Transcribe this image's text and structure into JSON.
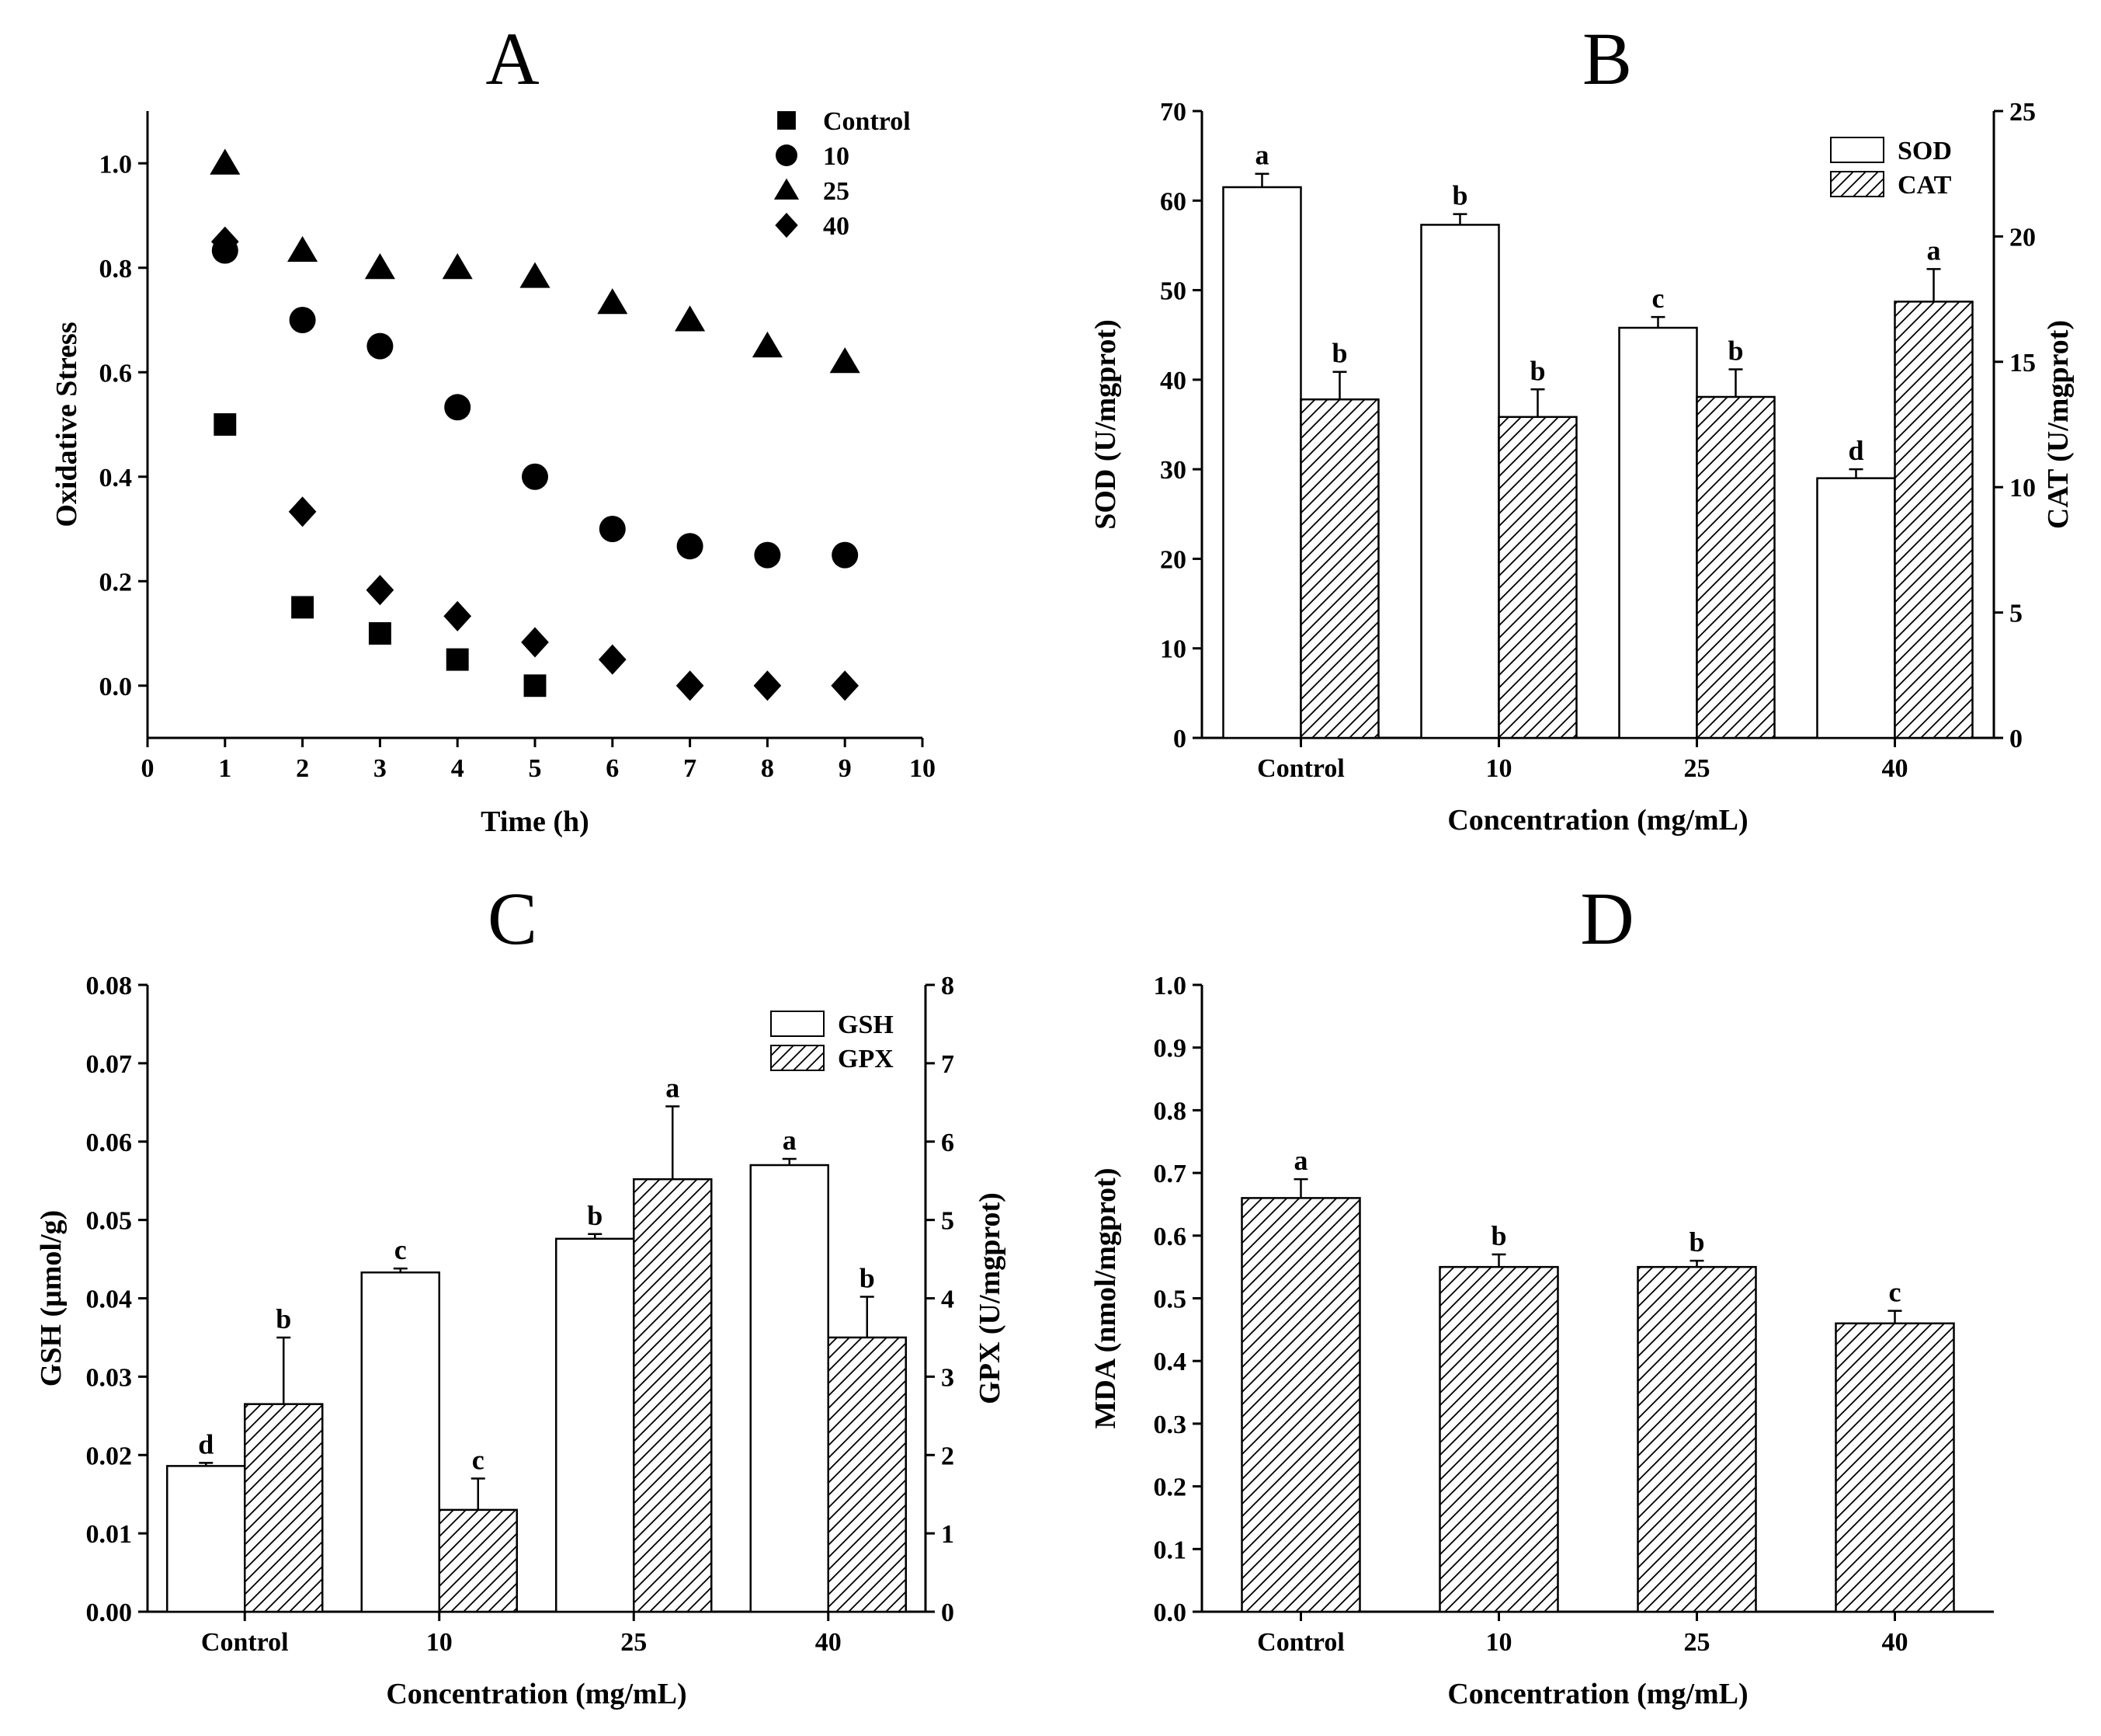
{
  "chart_data": [
    {
      "panel": "A",
      "type": "scatter",
      "title": "A",
      "xlabel": "Time (h)",
      "ylabel": "Oxidative Stress",
      "xlim": [
        0,
        10
      ],
      "ylim": [
        -0.1,
        1.1
      ],
      "xticks": [
        "0",
        "1",
        "2",
        "3",
        "4",
        "5",
        "6",
        "7",
        "8",
        "9",
        "10"
      ],
      "yticks": [
        "0.0",
        "0.2",
        "0.4",
        "0.6",
        "0.8",
        "1.0"
      ],
      "legend_position": "top-right",
      "series": [
        {
          "name": "Control",
          "marker": "square",
          "x": [
            1,
            2,
            3,
            4,
            5
          ],
          "y": [
            0.5,
            0.15,
            0.1,
            0.05,
            0.0
          ]
        },
        {
          "name": "10",
          "marker": "circle",
          "x": [
            1,
            2,
            3,
            4,
            5,
            6,
            7,
            8,
            9
          ],
          "y": [
            0.833,
            0.7,
            0.65,
            0.533,
            0.4,
            0.3,
            0.267,
            0.25,
            0.25
          ]
        },
        {
          "name": "25",
          "marker": "triangle",
          "x": [
            1,
            2,
            3,
            4,
            5,
            6,
            7,
            8,
            9
          ],
          "y": [
            1.0,
            0.833,
            0.8,
            0.8,
            0.783,
            0.733,
            0.7,
            0.65,
            0.62
          ]
        },
        {
          "name": "40",
          "marker": "diamond",
          "x": [
            1,
            2,
            3,
            4,
            5,
            6,
            7,
            8,
            9
          ],
          "y": [
            0.85,
            0.333,
            0.183,
            0.133,
            0.083,
            0.05,
            0.0,
            0.0,
            0.0
          ]
        }
      ]
    },
    {
      "panel": "B",
      "type": "bar",
      "title": "B",
      "xlabel": "Concentration (mg/mL)",
      "ylabel": "SOD (U/mgprot)",
      "ylabel_right": "CAT (U/mgprot)",
      "categories": [
        "Control",
        "10",
        "25",
        "40"
      ],
      "ylim": [
        0,
        70
      ],
      "ylim_right": [
        0,
        25
      ],
      "yticks": [
        "0",
        "10",
        "20",
        "30",
        "40",
        "50",
        "60",
        "70"
      ],
      "yticks_right": [
        "0",
        "5",
        "10",
        "15",
        "20",
        "25"
      ],
      "legend_position": "top-right",
      "series": [
        {
          "name": "SOD",
          "axis": "left",
          "pattern": "open",
          "values": [
            61.5,
            57.3,
            45.8,
            29.0
          ],
          "errors": [
            1.5,
            1.2,
            1.2,
            1.0
          ],
          "letters": [
            "a",
            "b",
            "c",
            "d"
          ]
        },
        {
          "name": "CAT",
          "axis": "right",
          "pattern": "hatched",
          "values": [
            13.5,
            12.8,
            13.6,
            17.4
          ],
          "errors": [
            1.1,
            1.1,
            1.1,
            1.3
          ],
          "letters": [
            "b",
            "b",
            "b",
            "a"
          ]
        }
      ]
    },
    {
      "panel": "C",
      "type": "bar",
      "title": "C",
      "xlabel": "Concentration (mg/mL)",
      "ylabel": "GSH (μmol/g)",
      "ylabel_right": "GPX (U/mgprot)",
      "categories": [
        "Control",
        "10",
        "25",
        "40"
      ],
      "ylim": [
        0,
        0.08
      ],
      "ylim_right": [
        0,
        8
      ],
      "yticks": [
        "0.00",
        "0.01",
        "0.02",
        "0.03",
        "0.04",
        "0.05",
        "0.06",
        "0.07",
        "0.08"
      ],
      "yticks_right": [
        "0",
        "1",
        "2",
        "3",
        "4",
        "5",
        "6",
        "7",
        "8"
      ],
      "legend_position": "top-right",
      "series": [
        {
          "name": "GSH",
          "axis": "left",
          "pattern": "open",
          "values": [
            0.0186,
            0.0433,
            0.0476,
            0.057
          ],
          "errors": [
            0.0004,
            0.0005,
            0.0006,
            0.0008
          ],
          "letters": [
            "d",
            "c",
            "b",
            "a"
          ]
        },
        {
          "name": "GPX",
          "axis": "right",
          "pattern": "hatched",
          "values": [
            2.65,
            1.3,
            5.52,
            3.5
          ],
          "errors": [
            0.85,
            0.4,
            0.93,
            0.52
          ],
          "letters": [
            "b",
            "c",
            "a",
            "b"
          ]
        }
      ]
    },
    {
      "panel": "D",
      "type": "bar",
      "title": "D",
      "xlabel": "Concentration (mg/mL)",
      "ylabel": "MDA (nmol/mgprot)",
      "categories": [
        "Control",
        "10",
        "25",
        "40"
      ],
      "ylim": [
        0,
        1.0
      ],
      "yticks": [
        "0.0",
        "0.1",
        "0.2",
        "0.3",
        "0.4",
        "0.5",
        "0.6",
        "0.7",
        "0.8",
        "0.9",
        "1.0"
      ],
      "series": [
        {
          "name": "MDA",
          "axis": "left",
          "pattern": "hatched",
          "values": [
            0.66,
            0.55,
            0.55,
            0.46
          ],
          "errors": [
            0.03,
            0.02,
            0.01,
            0.02
          ],
          "letters": [
            "a",
            "b",
            "b",
            "c"
          ]
        }
      ]
    }
  ]
}
